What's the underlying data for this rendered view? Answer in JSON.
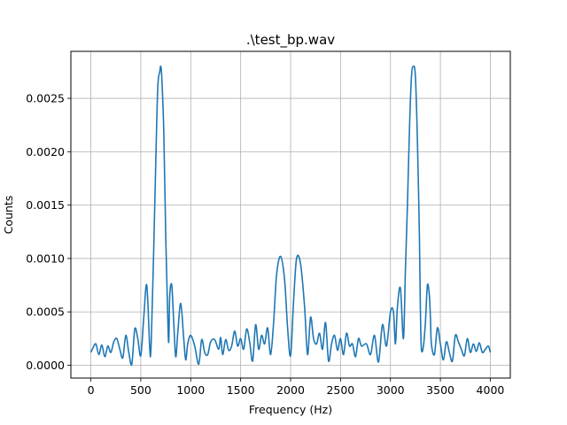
{
  "chart_data": {
    "type": "line",
    "title": ".\\test_bp.wav",
    "xlabel": "Frequency (Hz)",
    "ylabel": "Counts",
    "xlim": [
      -200,
      4200
    ],
    "ylim": [
      -0.00012,
      0.00294
    ],
    "xticks": [
      0,
      500,
      1000,
      1500,
      2000,
      2500,
      3000,
      3500,
      4000
    ],
    "xtick_labels": [
      "0",
      "500",
      "1000",
      "1500",
      "2000",
      "2500",
      "3000",
      "3500",
      "4000"
    ],
    "yticks": [
      0.0,
      0.0005,
      0.001,
      0.0015,
      0.002,
      0.0025
    ],
    "ytick_labels": [
      "0.0000",
      "0.0005",
      "0.0010",
      "0.0015",
      "0.0020",
      "0.0025"
    ],
    "grid": true,
    "line_color": "#1f77b4",
    "series": [
      {
        "x": [
          0,
          20,
          50,
          80,
          110,
          140,
          170,
          200,
          230,
          260,
          290,
          320,
          350,
          380,
          410,
          440,
          470,
          500,
          530,
          560,
          590,
          600,
          610,
          630,
          650,
          670,
          690,
          700,
          710,
          730,
          750,
          770,
          780,
          790,
          810,
          830,
          850,
          870,
          900,
          930,
          950,
          970,
          1000,
          1040,
          1080,
          1110,
          1140,
          1170,
          1200,
          1240,
          1280,
          1300,
          1320,
          1350,
          1380,
          1410,
          1440,
          1470,
          1500,
          1530,
          1560,
          1590,
          1620,
          1650,
          1680,
          1710,
          1740,
          1770,
          1800,
          1830,
          1860,
          1900,
          1940,
          1970,
          2000,
          2030,
          2060,
          2100,
          2140,
          2170,
          2200,
          2230,
          2260,
          2290,
          2320,
          2350,
          2380,
          2410,
          2440,
          2470,
          2500,
          2530,
          2560,
          2590,
          2620,
          2650,
          2680,
          2710,
          2760,
          2800,
          2840,
          2880,
          2920,
          2960,
          3000,
          3030,
          3050,
          3070,
          3100,
          3130,
          3150,
          3170,
          3190,
          3210,
          3230,
          3250,
          3270,
          3290,
          3300,
          3310,
          3330,
          3350,
          3370,
          3390,
          3400,
          3410,
          3440,
          3470,
          3500,
          3530,
          3560,
          3590,
          3620,
          3650,
          3680,
          3710,
          3740,
          3770,
          3800,
          3830,
          3860,
          3890,
          3920,
          3950,
          3980,
          4000
        ],
        "y": [
          0.00012,
          0.00016,
          0.0002,
          0.0001,
          0.00019,
          8e-05,
          0.00018,
          0.00012,
          0.00022,
          0.00025,
          0.00015,
          7e-05,
          0.00028,
          0.00012,
          1e-05,
          0.00034,
          0.00025,
          9e-05,
          0.00045,
          0.00075,
          0.00015,
          0.00012,
          0.0004,
          0.0011,
          0.0019,
          0.0026,
          0.00275,
          0.0028,
          0.0027,
          0.0022,
          0.0012,
          0.00045,
          0.00022,
          0.00065,
          0.00075,
          0.0004,
          8e-05,
          0.0003,
          0.00058,
          0.00025,
          5e-05,
          0.0002,
          0.00028,
          0.00018,
          1e-05,
          0.00024,
          0.00012,
          0.0001,
          0.00022,
          0.00024,
          0.00015,
          0.00026,
          0.0001,
          0.00024,
          0.00014,
          0.00018,
          0.00032,
          0.00018,
          0.00025,
          0.00015,
          0.00034,
          0.00022,
          4e-05,
          0.00038,
          0.00015,
          0.00028,
          0.0002,
          0.00035,
          0.0001,
          0.0004,
          0.00085,
          0.00102,
          0.0008,
          0.00035,
          9e-05,
          0.0006,
          0.001,
          0.00095,
          0.00055,
          0.0001,
          0.00045,
          0.00025,
          0.0002,
          0.0003,
          0.00015,
          0.0004,
          4e-05,
          0.0002,
          0.00028,
          0.00014,
          0.00025,
          0.0001,
          0.0003,
          0.00018,
          0.0002,
          8e-05,
          0.00025,
          0.00018,
          0.0002,
          0.0001,
          0.00028,
          3e-05,
          0.00038,
          0.00018,
          0.0005,
          0.0005,
          0.0002,
          0.00055,
          0.00072,
          0.00025,
          0.0009,
          0.0015,
          0.0022,
          0.0027,
          0.0028,
          0.0027,
          0.0021,
          0.0012,
          0.0005,
          0.00015,
          0.00018,
          0.0004,
          0.00075,
          0.00065,
          0.00045,
          0.0002,
          0.0001,
          0.00035,
          0.0002,
          5e-05,
          0.00022,
          0.00012,
          4e-05,
          0.00028,
          0.00022,
          0.00015,
          9e-05,
          0.00025,
          0.00012,
          0.0002,
          0.00013,
          0.00021,
          0.00012,
          0.00015,
          0.00018,
          0.00012
        ]
      }
    ]
  }
}
